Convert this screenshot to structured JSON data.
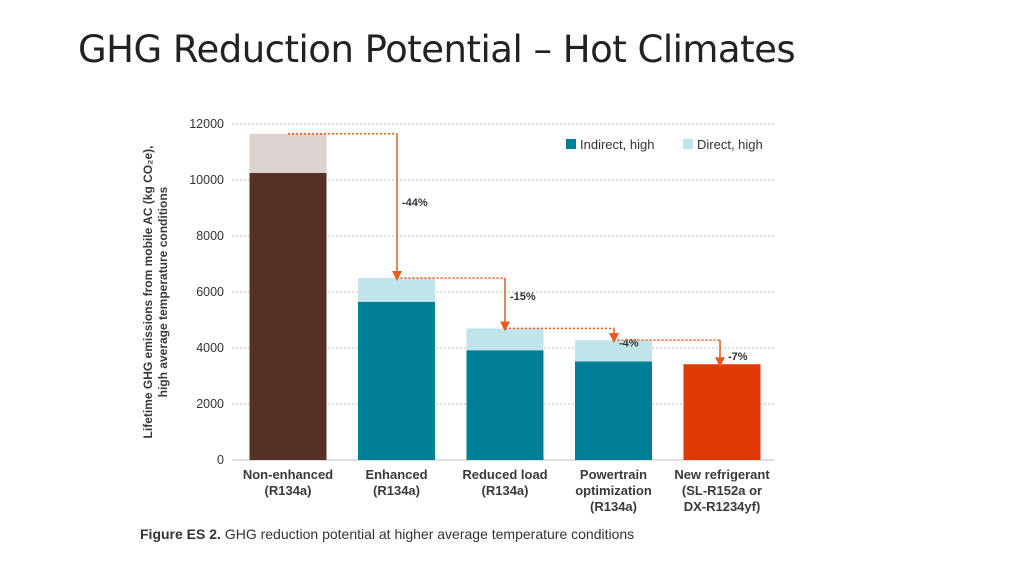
{
  "slide": {
    "title": "GHG Reduction Potential – Hot Climates"
  },
  "caption": {
    "figure": "Figure ES 2.",
    "text": "GHG reduction potential at higher average temperature conditions"
  },
  "chart_data": {
    "type": "bar",
    "stacked": true,
    "categories": [
      [
        "Non-enhanced",
        "(R134a)"
      ],
      [
        "Enhanced",
        "(R134a)"
      ],
      [
        "Reduced load",
        "(R134a)"
      ],
      [
        "Powertrain",
        "optimization",
        "(R134a)"
      ],
      [
        "New refrigerant",
        "(SL-R152a or",
        "DX-R1234yf)"
      ]
    ],
    "series": [
      {
        "name": "Indirect, high",
        "values": [
          10250,
          5650,
          3920,
          3520,
          3420
        ]
      },
      {
        "name": "Direct, high",
        "values": [
          1400,
          850,
          780,
          760,
          0
        ]
      }
    ],
    "bar_colors": [
      {
        "indirect": "#553128",
        "direct": "#dcd3d0"
      },
      {
        "indirect": "#007f96",
        "direct": "#bfe5ea"
      },
      {
        "indirect": "#007f96",
        "direct": "#bfe5ea"
      },
      {
        "indirect": "#007f96",
        "direct": "#bfe5ea"
      },
      {
        "indirect": "#e03a06",
        "direct": "#f5c3ad"
      }
    ],
    "legend_colors": [
      "#007f96",
      "#bfe5ea"
    ],
    "reductions": [
      "-44%",
      "-15%",
      "-4%",
      "-7%"
    ],
    "arrow_color": "#e65c1e",
    "ylabel_lines": [
      "Lifetime GHG emissions from mobile AC (kg CO₂e),",
      "high average temperature conditions"
    ],
    "ylim": [
      0,
      12000
    ],
    "yticks": [
      0,
      2000,
      4000,
      6000,
      8000,
      10000,
      12000
    ],
    "grid": true,
    "legend_position": "top-right"
  }
}
